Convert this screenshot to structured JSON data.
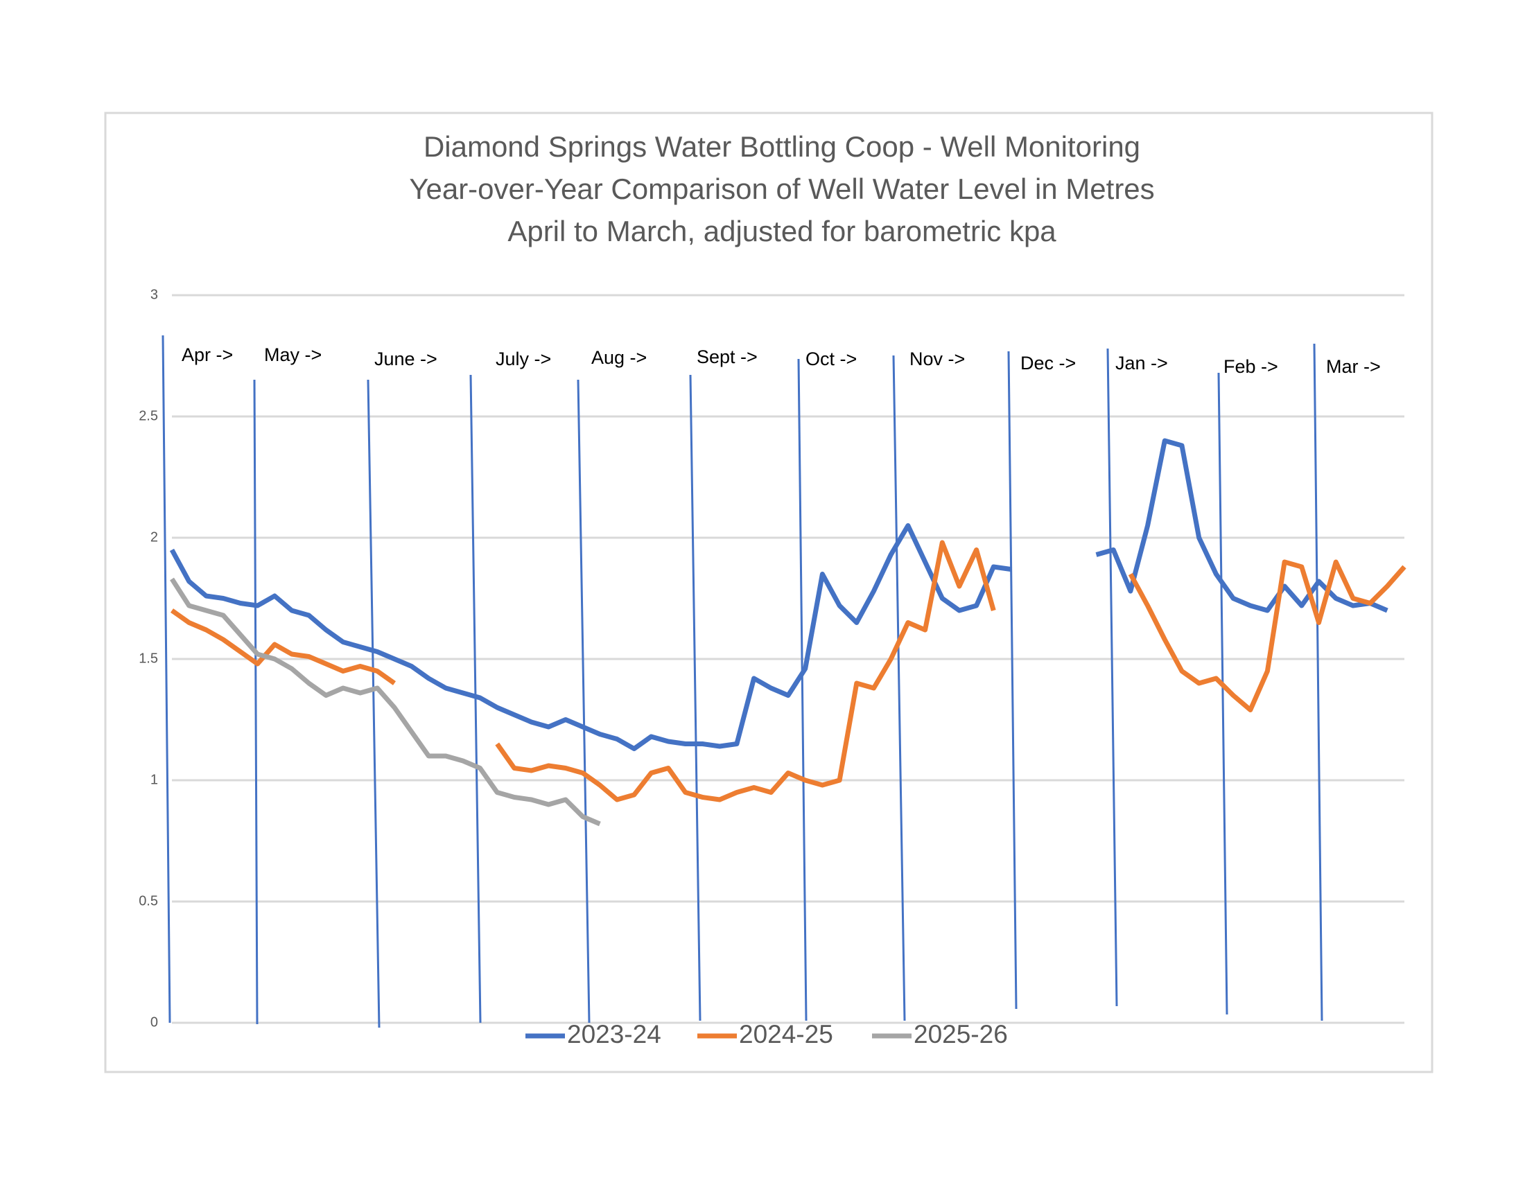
{
  "chart_data": {
    "type": "line",
    "title": "Diamond Springs  Water Bottling Coop - Well Monitoring",
    "subtitle": [
      "Year-over-Year Comparison of Well  Water Level in Metres",
      "April to March, adjusted for barometric kpa"
    ],
    "annotations": [
      "Apr ->",
      "May ->",
      "June  ->",
      "July  ->",
      "Aug  ->",
      "Sept  ->",
      "Oct ->",
      "Nov ->",
      "Dec ->",
      "Jan ->",
      "Feb ->",
      "Mar ->"
    ],
    "ylim": [
      0,
      3
    ],
    "yticks": [
      0,
      0.5,
      1,
      1.5,
      2,
      2.5,
      3
    ],
    "grid": true,
    "legend": "bottom",
    "series": [
      {
        "name": "2023-24",
        "color": "#4472c4",
        "values": [
          1.95,
          1.82,
          1.76,
          1.75,
          1.73,
          1.72,
          1.76,
          1.7,
          1.68,
          1.62,
          1.57,
          1.55,
          1.53,
          1.5,
          1.47,
          1.42,
          1.38,
          1.36,
          1.34,
          1.3,
          1.27,
          1.24,
          1.22,
          1.25,
          1.22,
          1.19,
          1.17,
          1.13,
          1.18,
          1.16,
          1.15,
          1.15,
          1.14,
          1.15,
          1.42,
          1.38,
          1.35,
          1.46,
          1.85,
          1.72,
          1.65,
          1.78,
          1.93,
          2.05,
          1.9,
          1.75,
          1.7,
          1.72,
          1.88,
          1.87,
          null,
          null,
          null,
          null,
          1.93,
          1.95,
          1.78,
          2.05,
          2.4,
          2.38,
          2.0,
          1.85,
          1.75,
          1.72,
          1.7,
          1.8,
          1.72,
          1.82,
          1.75,
          1.72,
          1.73,
          1.7,
          null
        ]
      },
      {
        "name": "2024-25",
        "color": "#ed7d31",
        "values": [
          1.7,
          1.65,
          1.62,
          1.58,
          1.53,
          1.48,
          1.56,
          1.52,
          1.51,
          1.48,
          1.45,
          1.47,
          1.45,
          1.4,
          null,
          null,
          null,
          null,
          null,
          1.15,
          1.05,
          1.04,
          1.06,
          1.05,
          1.03,
          0.98,
          0.92,
          0.94,
          1.03,
          1.05,
          0.95,
          0.93,
          0.92,
          0.95,
          0.97,
          0.95,
          1.03,
          1.0,
          0.98,
          1.0,
          1.4,
          1.38,
          1.5,
          1.65,
          1.62,
          1.98,
          1.8,
          1.95,
          1.7,
          null,
          null,
          null,
          null,
          null,
          null,
          null,
          1.85,
          1.72,
          1.58,
          1.45,
          1.4,
          1.42,
          1.35,
          1.29,
          1.45,
          1.9,
          1.88,
          1.65,
          1.9,
          1.75,
          1.73,
          1.8,
          1.88
        ]
      },
      {
        "name": "2025-26",
        "color": "#a5a5a5",
        "values": [
          1.83,
          1.72,
          1.7,
          1.68,
          1.6,
          1.52,
          1.5,
          1.46,
          1.4,
          1.35,
          1.38,
          1.36,
          1.38,
          1.3,
          1.2,
          1.1,
          1.1,
          1.08,
          1.05,
          0.95,
          0.93,
          0.92,
          0.9,
          0.92,
          0.85,
          0.82,
          null,
          null,
          null,
          null,
          null,
          null,
          null,
          null,
          null,
          null,
          null,
          null,
          null,
          null,
          null,
          null,
          null,
          null,
          null,
          null,
          null,
          null,
          null,
          null,
          null,
          null,
          null,
          null,
          null,
          null,
          null,
          null,
          null,
          null,
          null,
          null,
          null,
          null,
          null,
          null,
          null,
          null,
          null,
          null,
          null,
          null,
          null
        ]
      }
    ]
  }
}
